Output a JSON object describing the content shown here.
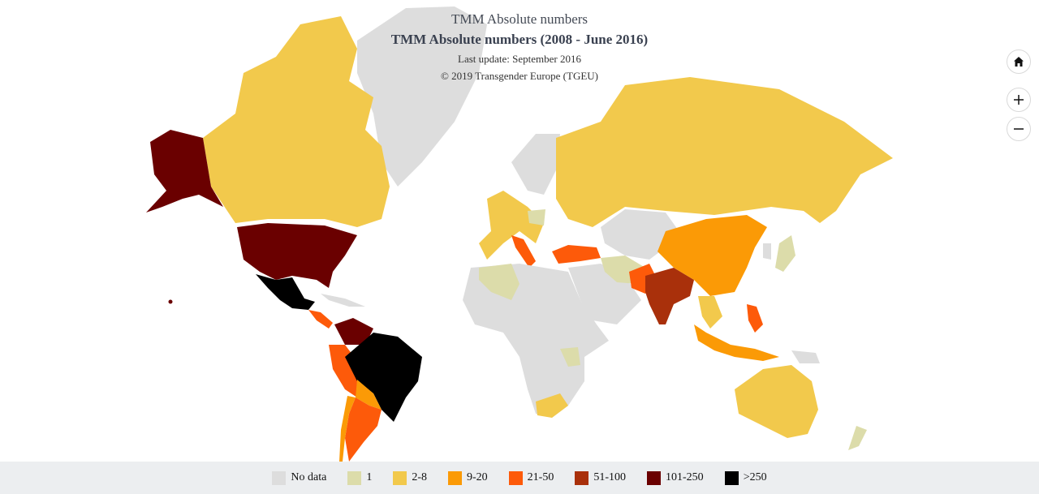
{
  "header": {
    "title": "TMM Absolute numbers",
    "subtitle": "TMM Absolute numbers (2008 - June 2016)",
    "last_update": "Last update: September 2016",
    "copyright": "© 2019 Transgender Europe (TGEU)"
  },
  "controls": [
    {
      "name": "home-button",
      "icon": "home-icon"
    },
    {
      "name": "zoom-in-button",
      "icon": "plus-icon"
    },
    {
      "name": "zoom-out-button",
      "icon": "minus-icon"
    }
  ],
  "colors": {
    "no_data": "#dddddd",
    "c1": "#dcdcaa",
    "c2_8": "#f2c94c",
    "c9_20": "#fb9a06",
    "c21_50": "#fd5a0a",
    "c51_100": "#a9300b",
    "c101_250": "#6a0000",
    "c250": "#000000"
  },
  "legend": [
    {
      "label": "No data",
      "color": "#dddddd"
    },
    {
      "label": "1",
      "color": "#dcdcaa"
    },
    {
      "label": "2-8",
      "color": "#f2c94c"
    },
    {
      "label": "9-20",
      "color": "#fb9a06"
    },
    {
      "label": "21-50",
      "color": "#fd5a0a"
    },
    {
      "label": "51-100",
      "color": "#a9300b"
    },
    {
      "label": "101-250",
      "color": "#6a0000"
    },
    {
      "label": ">250",
      "color": "#000000"
    }
  ],
  "regions": [
    {
      "name": "Alaska",
      "category": "101-250"
    },
    {
      "name": "Canada",
      "category": "2-8"
    },
    {
      "name": "Greenland",
      "category": "No data"
    },
    {
      "name": "United States",
      "category": "101-250"
    },
    {
      "name": "Mexico",
      "category": ">250"
    },
    {
      "name": "Central America",
      "category": "21-50"
    },
    {
      "name": "Venezuela",
      "category": "101-250"
    },
    {
      "name": "Colombia",
      "category": "21-50"
    },
    {
      "name": "Peru",
      "category": "21-50"
    },
    {
      "name": "Brazil",
      "category": ">250"
    },
    {
      "name": "Bolivia",
      "category": "9-20"
    },
    {
      "name": "Argentina",
      "category": "21-50"
    },
    {
      "name": "Chile",
      "category": "9-20"
    },
    {
      "name": "Russia",
      "category": "2-8"
    },
    {
      "name": "China",
      "category": "9-20"
    },
    {
      "name": "India",
      "category": "51-100"
    },
    {
      "name": "Pakistan",
      "category": "21-50"
    },
    {
      "name": "Turkey",
      "category": "21-50"
    },
    {
      "name": "Italy",
      "category": "21-50"
    },
    {
      "name": "Australia",
      "category": "2-8"
    },
    {
      "name": "Algeria",
      "category": "1"
    },
    {
      "name": "South Africa",
      "category": "2-8"
    },
    {
      "name": "Philippines",
      "category": "21-50"
    },
    {
      "name": "Indonesia",
      "category": "9-20"
    },
    {
      "name": "Iran",
      "category": "1"
    },
    {
      "name": "Japan",
      "category": "1"
    }
  ]
}
